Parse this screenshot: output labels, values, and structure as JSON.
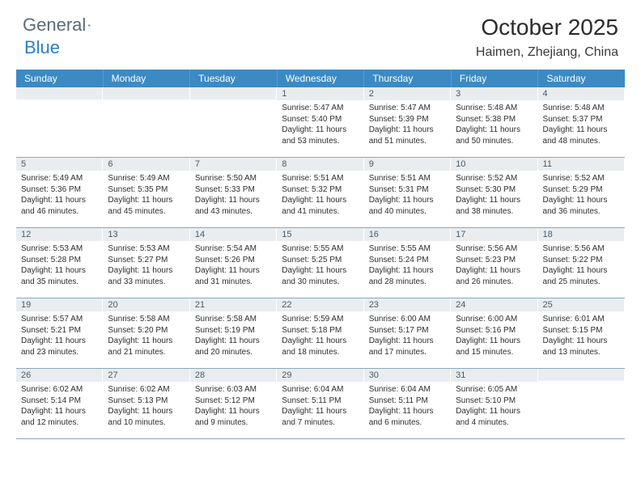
{
  "logo": {
    "text1": "General",
    "text2": "Blue"
  },
  "title": "October 2025",
  "location": "Haimen, Zhejiang, China",
  "colors": {
    "header_bg": "#3b8ac4",
    "header_text": "#ffffff",
    "daynum_bg": "#e9edf0",
    "daynum_text": "#4a5a66",
    "body_text": "#2e2e2e",
    "divider": "#8fa7b8",
    "logo_gray": "#5a6a7a",
    "logo_blue": "#2a7fc9"
  },
  "day_names": [
    "Sunday",
    "Monday",
    "Tuesday",
    "Wednesday",
    "Thursday",
    "Friday",
    "Saturday"
  ],
  "weeks": [
    [
      {
        "n": "",
        "sr": "",
        "ss": "",
        "dl": ""
      },
      {
        "n": "",
        "sr": "",
        "ss": "",
        "dl": ""
      },
      {
        "n": "",
        "sr": "",
        "ss": "",
        "dl": ""
      },
      {
        "n": "1",
        "sr": "Sunrise: 5:47 AM",
        "ss": "Sunset: 5:40 PM",
        "dl": "Daylight: 11 hours and 53 minutes."
      },
      {
        "n": "2",
        "sr": "Sunrise: 5:47 AM",
        "ss": "Sunset: 5:39 PM",
        "dl": "Daylight: 11 hours and 51 minutes."
      },
      {
        "n": "3",
        "sr": "Sunrise: 5:48 AM",
        "ss": "Sunset: 5:38 PM",
        "dl": "Daylight: 11 hours and 50 minutes."
      },
      {
        "n": "4",
        "sr": "Sunrise: 5:48 AM",
        "ss": "Sunset: 5:37 PM",
        "dl": "Daylight: 11 hours and 48 minutes."
      }
    ],
    [
      {
        "n": "5",
        "sr": "Sunrise: 5:49 AM",
        "ss": "Sunset: 5:36 PM",
        "dl": "Daylight: 11 hours and 46 minutes."
      },
      {
        "n": "6",
        "sr": "Sunrise: 5:49 AM",
        "ss": "Sunset: 5:35 PM",
        "dl": "Daylight: 11 hours and 45 minutes."
      },
      {
        "n": "7",
        "sr": "Sunrise: 5:50 AM",
        "ss": "Sunset: 5:33 PM",
        "dl": "Daylight: 11 hours and 43 minutes."
      },
      {
        "n": "8",
        "sr": "Sunrise: 5:51 AM",
        "ss": "Sunset: 5:32 PM",
        "dl": "Daylight: 11 hours and 41 minutes."
      },
      {
        "n": "9",
        "sr": "Sunrise: 5:51 AM",
        "ss": "Sunset: 5:31 PM",
        "dl": "Daylight: 11 hours and 40 minutes."
      },
      {
        "n": "10",
        "sr": "Sunrise: 5:52 AM",
        "ss": "Sunset: 5:30 PM",
        "dl": "Daylight: 11 hours and 38 minutes."
      },
      {
        "n": "11",
        "sr": "Sunrise: 5:52 AM",
        "ss": "Sunset: 5:29 PM",
        "dl": "Daylight: 11 hours and 36 minutes."
      }
    ],
    [
      {
        "n": "12",
        "sr": "Sunrise: 5:53 AM",
        "ss": "Sunset: 5:28 PM",
        "dl": "Daylight: 11 hours and 35 minutes."
      },
      {
        "n": "13",
        "sr": "Sunrise: 5:53 AM",
        "ss": "Sunset: 5:27 PM",
        "dl": "Daylight: 11 hours and 33 minutes."
      },
      {
        "n": "14",
        "sr": "Sunrise: 5:54 AM",
        "ss": "Sunset: 5:26 PM",
        "dl": "Daylight: 11 hours and 31 minutes."
      },
      {
        "n": "15",
        "sr": "Sunrise: 5:55 AM",
        "ss": "Sunset: 5:25 PM",
        "dl": "Daylight: 11 hours and 30 minutes."
      },
      {
        "n": "16",
        "sr": "Sunrise: 5:55 AM",
        "ss": "Sunset: 5:24 PM",
        "dl": "Daylight: 11 hours and 28 minutes."
      },
      {
        "n": "17",
        "sr": "Sunrise: 5:56 AM",
        "ss": "Sunset: 5:23 PM",
        "dl": "Daylight: 11 hours and 26 minutes."
      },
      {
        "n": "18",
        "sr": "Sunrise: 5:56 AM",
        "ss": "Sunset: 5:22 PM",
        "dl": "Daylight: 11 hours and 25 minutes."
      }
    ],
    [
      {
        "n": "19",
        "sr": "Sunrise: 5:57 AM",
        "ss": "Sunset: 5:21 PM",
        "dl": "Daylight: 11 hours and 23 minutes."
      },
      {
        "n": "20",
        "sr": "Sunrise: 5:58 AM",
        "ss": "Sunset: 5:20 PM",
        "dl": "Daylight: 11 hours and 21 minutes."
      },
      {
        "n": "21",
        "sr": "Sunrise: 5:58 AM",
        "ss": "Sunset: 5:19 PM",
        "dl": "Daylight: 11 hours and 20 minutes."
      },
      {
        "n": "22",
        "sr": "Sunrise: 5:59 AM",
        "ss": "Sunset: 5:18 PM",
        "dl": "Daylight: 11 hours and 18 minutes."
      },
      {
        "n": "23",
        "sr": "Sunrise: 6:00 AM",
        "ss": "Sunset: 5:17 PM",
        "dl": "Daylight: 11 hours and 17 minutes."
      },
      {
        "n": "24",
        "sr": "Sunrise: 6:00 AM",
        "ss": "Sunset: 5:16 PM",
        "dl": "Daylight: 11 hours and 15 minutes."
      },
      {
        "n": "25",
        "sr": "Sunrise: 6:01 AM",
        "ss": "Sunset: 5:15 PM",
        "dl": "Daylight: 11 hours and 13 minutes."
      }
    ],
    [
      {
        "n": "26",
        "sr": "Sunrise: 6:02 AM",
        "ss": "Sunset: 5:14 PM",
        "dl": "Daylight: 11 hours and 12 minutes."
      },
      {
        "n": "27",
        "sr": "Sunrise: 6:02 AM",
        "ss": "Sunset: 5:13 PM",
        "dl": "Daylight: 11 hours and 10 minutes."
      },
      {
        "n": "28",
        "sr": "Sunrise: 6:03 AM",
        "ss": "Sunset: 5:12 PM",
        "dl": "Daylight: 11 hours and 9 minutes."
      },
      {
        "n": "29",
        "sr": "Sunrise: 6:04 AM",
        "ss": "Sunset: 5:11 PM",
        "dl": "Daylight: 11 hours and 7 minutes."
      },
      {
        "n": "30",
        "sr": "Sunrise: 6:04 AM",
        "ss": "Sunset: 5:11 PM",
        "dl": "Daylight: 11 hours and 6 minutes."
      },
      {
        "n": "31",
        "sr": "Sunrise: 6:05 AM",
        "ss": "Sunset: 5:10 PM",
        "dl": "Daylight: 11 hours and 4 minutes."
      },
      {
        "n": "",
        "sr": "",
        "ss": "",
        "dl": ""
      }
    ]
  ]
}
